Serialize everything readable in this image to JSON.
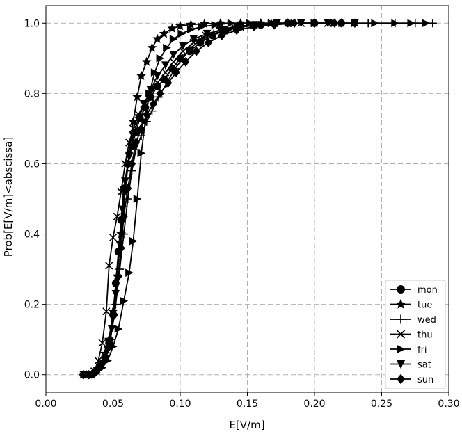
{
  "chart_data": {
    "type": "line",
    "title": "",
    "xlabel": "E[V/m]",
    "ylabel": "Prob[E[V/m]<abscissa]",
    "xlim": [
      0.0,
      0.3
    ],
    "ylim": [
      -0.05,
      1.05
    ],
    "xticks": [
      0.0,
      0.05,
      0.1,
      0.15,
      0.2,
      0.25,
      0.3
    ],
    "xtick_labels": [
      "0.00",
      "0.05",
      "0.10",
      "0.15",
      "0.20",
      "0.25",
      "0.30"
    ],
    "yticks": [
      0.0,
      0.2,
      0.4,
      0.6,
      0.8,
      1.0
    ],
    "ytick_labels": [
      "0.0",
      "0.2",
      "0.4",
      "0.6",
      "0.8",
      "1.0"
    ],
    "grid": true,
    "legend_position": "lower-right",
    "line_color": "#000000",
    "series": [
      {
        "name": "mon",
        "marker": "circle",
        "points": [
          [
            0.028,
            0.0
          ],
          [
            0.032,
            0.0
          ],
          [
            0.036,
            0.005
          ],
          [
            0.04,
            0.02
          ],
          [
            0.044,
            0.05
          ],
          [
            0.047,
            0.09
          ],
          [
            0.05,
            0.17
          ],
          [
            0.052,
            0.26
          ],
          [
            0.054,
            0.35
          ],
          [
            0.056,
            0.44
          ],
          [
            0.058,
            0.53
          ],
          [
            0.061,
            0.6
          ],
          [
            0.064,
            0.65
          ],
          [
            0.067,
            0.69
          ],
          [
            0.07,
            0.73
          ],
          [
            0.074,
            0.76
          ],
          [
            0.078,
            0.79
          ],
          [
            0.083,
            0.82
          ],
          [
            0.088,
            0.84
          ],
          [
            0.094,
            0.87
          ],
          [
            0.1,
            0.9
          ],
          [
            0.107,
            0.92
          ],
          [
            0.115,
            0.945
          ],
          [
            0.124,
            0.965
          ],
          [
            0.134,
            0.98
          ],
          [
            0.145,
            0.99
          ],
          [
            0.16,
            0.995
          ],
          [
            0.18,
            1.0
          ],
          [
            0.2,
            1.0
          ],
          [
            0.22,
            1.0
          ]
        ]
      },
      {
        "name": "tue",
        "marker": "star",
        "points": [
          [
            0.03,
            0.0
          ],
          [
            0.034,
            0.0
          ],
          [
            0.038,
            0.01
          ],
          [
            0.041,
            0.03
          ],
          [
            0.044,
            0.06
          ],
          [
            0.047,
            0.1
          ],
          [
            0.05,
            0.18
          ],
          [
            0.053,
            0.28
          ],
          [
            0.056,
            0.4
          ],
          [
            0.059,
            0.52
          ],
          [
            0.062,
            0.63
          ],
          [
            0.065,
            0.72
          ],
          [
            0.068,
            0.79
          ],
          [
            0.071,
            0.85
          ],
          [
            0.075,
            0.89
          ],
          [
            0.079,
            0.93
          ],
          [
            0.083,
            0.955
          ],
          [
            0.088,
            0.97
          ],
          [
            0.094,
            0.985
          ],
          [
            0.1,
            0.992
          ],
          [
            0.108,
            0.996
          ],
          [
            0.118,
            0.998
          ],
          [
            0.13,
            1.0
          ],
          [
            0.145,
            1.0
          ],
          [
            0.16,
            1.0
          ],
          [
            0.18,
            1.0
          ],
          [
            0.2,
            1.0
          ],
          [
            0.22,
            1.0
          ]
        ]
      },
      {
        "name": "wed",
        "marker": "plus",
        "points": [
          [
            0.028,
            0.0
          ],
          [
            0.032,
            0.0
          ],
          [
            0.036,
            0.005
          ],
          [
            0.04,
            0.02
          ],
          [
            0.044,
            0.05
          ],
          [
            0.048,
            0.1
          ],
          [
            0.052,
            0.2
          ],
          [
            0.055,
            0.3
          ],
          [
            0.058,
            0.4
          ],
          [
            0.061,
            0.5
          ],
          [
            0.064,
            0.58
          ],
          [
            0.067,
            0.64
          ],
          [
            0.071,
            0.68
          ],
          [
            0.075,
            0.72
          ],
          [
            0.079,
            0.75
          ],
          [
            0.084,
            0.79
          ],
          [
            0.09,
            0.83
          ],
          [
            0.096,
            0.87
          ],
          [
            0.102,
            0.9
          ],
          [
            0.108,
            0.93
          ],
          [
            0.116,
            0.955
          ],
          [
            0.125,
            0.97
          ],
          [
            0.135,
            0.98
          ],
          [
            0.147,
            0.99
          ],
          [
            0.16,
            0.995
          ],
          [
            0.18,
            1.0
          ],
          [
            0.2,
            1.0
          ],
          [
            0.22,
            1.0
          ],
          [
            0.24,
            1.0
          ],
          [
            0.26,
            1.0
          ],
          [
            0.275,
            1.0
          ],
          [
            0.288,
            1.0
          ]
        ]
      },
      {
        "name": "thu",
        "marker": "x",
        "points": [
          [
            0.028,
            0.0
          ],
          [
            0.032,
            0.0
          ],
          [
            0.036,
            0.01
          ],
          [
            0.039,
            0.04
          ],
          [
            0.042,
            0.09
          ],
          [
            0.045,
            0.18
          ],
          [
            0.047,
            0.31
          ],
          [
            0.05,
            0.39
          ],
          [
            0.053,
            0.45
          ],
          [
            0.056,
            0.52
          ],
          [
            0.059,
            0.6
          ],
          [
            0.062,
            0.66
          ],
          [
            0.065,
            0.7
          ],
          [
            0.069,
            0.74
          ],
          [
            0.073,
            0.77
          ],
          [
            0.078,
            0.8
          ],
          [
            0.083,
            0.83
          ],
          [
            0.089,
            0.86
          ],
          [
            0.095,
            0.89
          ],
          [
            0.102,
            0.92
          ],
          [
            0.11,
            0.945
          ],
          [
            0.119,
            0.965
          ],
          [
            0.129,
            0.98
          ],
          [
            0.14,
            0.99
          ],
          [
            0.155,
            0.995
          ],
          [
            0.17,
            1.0
          ],
          [
            0.19,
            1.0
          ],
          [
            0.21,
            1.0
          ],
          [
            0.23,
            1.0
          ]
        ]
      },
      {
        "name": "fri",
        "marker": "triangle-right",
        "points": [
          [
            0.03,
            0.0
          ],
          [
            0.034,
            0.0
          ],
          [
            0.038,
            0.005
          ],
          [
            0.042,
            0.02
          ],
          [
            0.046,
            0.04
          ],
          [
            0.05,
            0.08
          ],
          [
            0.054,
            0.13
          ],
          [
            0.058,
            0.21
          ],
          [
            0.062,
            0.29
          ],
          [
            0.065,
            0.38
          ],
          [
            0.068,
            0.5
          ],
          [
            0.071,
            0.63
          ],
          [
            0.074,
            0.72
          ],
          [
            0.077,
            0.8
          ],
          [
            0.081,
            0.86
          ],
          [
            0.085,
            0.9
          ],
          [
            0.09,
            0.93
          ],
          [
            0.095,
            0.955
          ],
          [
            0.101,
            0.97
          ],
          [
            0.108,
            0.982
          ],
          [
            0.116,
            0.99
          ],
          [
            0.126,
            0.995
          ],
          [
            0.138,
            1.0
          ],
          [
            0.152,
            1.0
          ],
          [
            0.168,
            1.0
          ],
          [
            0.185,
            1.0
          ],
          [
            0.2,
            1.0
          ],
          [
            0.215,
            1.0
          ],
          [
            0.23,
            1.0
          ],
          [
            0.245,
            1.0
          ],
          [
            0.26,
            1.0
          ],
          [
            0.272,
            1.0
          ],
          [
            0.283,
            1.0
          ]
        ]
      },
      {
        "name": "sat",
        "marker": "triangle-down",
        "points": [
          [
            0.03,
            0.0
          ],
          [
            0.034,
            0.0
          ],
          [
            0.038,
            0.01
          ],
          [
            0.042,
            0.03
          ],
          [
            0.046,
            0.07
          ],
          [
            0.049,
            0.13
          ],
          [
            0.052,
            0.23
          ],
          [
            0.055,
            0.37
          ],
          [
            0.057,
            0.47
          ],
          [
            0.059,
            0.55
          ],
          [
            0.062,
            0.62
          ],
          [
            0.065,
            0.68
          ],
          [
            0.069,
            0.73
          ],
          [
            0.073,
            0.77
          ],
          [
            0.078,
            0.81
          ],
          [
            0.083,
            0.85
          ],
          [
            0.089,
            0.88
          ],
          [
            0.095,
            0.91
          ],
          [
            0.102,
            0.935
          ],
          [
            0.11,
            0.955
          ],
          [
            0.12,
            0.97
          ],
          [
            0.13,
            0.98
          ],
          [
            0.142,
            0.99
          ],
          [
            0.156,
            0.995
          ],
          [
            0.172,
            1.0
          ],
          [
            0.19,
            1.0
          ],
          [
            0.21,
            1.0
          ],
          [
            0.23,
            1.0
          ]
        ]
      },
      {
        "name": "sun",
        "marker": "diamond",
        "points": [
          [
            0.028,
            0.0
          ],
          [
            0.032,
            0.0
          ],
          [
            0.036,
            0.005
          ],
          [
            0.04,
            0.02
          ],
          [
            0.044,
            0.05
          ],
          [
            0.048,
            0.1
          ],
          [
            0.051,
            0.17
          ],
          [
            0.054,
            0.28
          ],
          [
            0.056,
            0.36
          ],
          [
            0.058,
            0.45
          ],
          [
            0.061,
            0.53
          ],
          [
            0.064,
            0.6
          ],
          [
            0.067,
            0.66
          ],
          [
            0.071,
            0.7
          ],
          [
            0.075,
            0.74
          ],
          [
            0.08,
            0.77
          ],
          [
            0.085,
            0.8
          ],
          [
            0.091,
            0.83
          ],
          [
            0.097,
            0.86
          ],
          [
            0.104,
            0.89
          ],
          [
            0.112,
            0.92
          ],
          [
            0.121,
            0.945
          ],
          [
            0.131,
            0.965
          ],
          [
            0.142,
            0.98
          ],
          [
            0.155,
            0.99
          ],
          [
            0.17,
            0.995
          ],
          [
            0.185,
            1.0
          ],
          [
            0.2,
            1.0
          ],
          [
            0.215,
            1.0
          ],
          [
            0.23,
            1.0
          ]
        ]
      }
    ]
  }
}
